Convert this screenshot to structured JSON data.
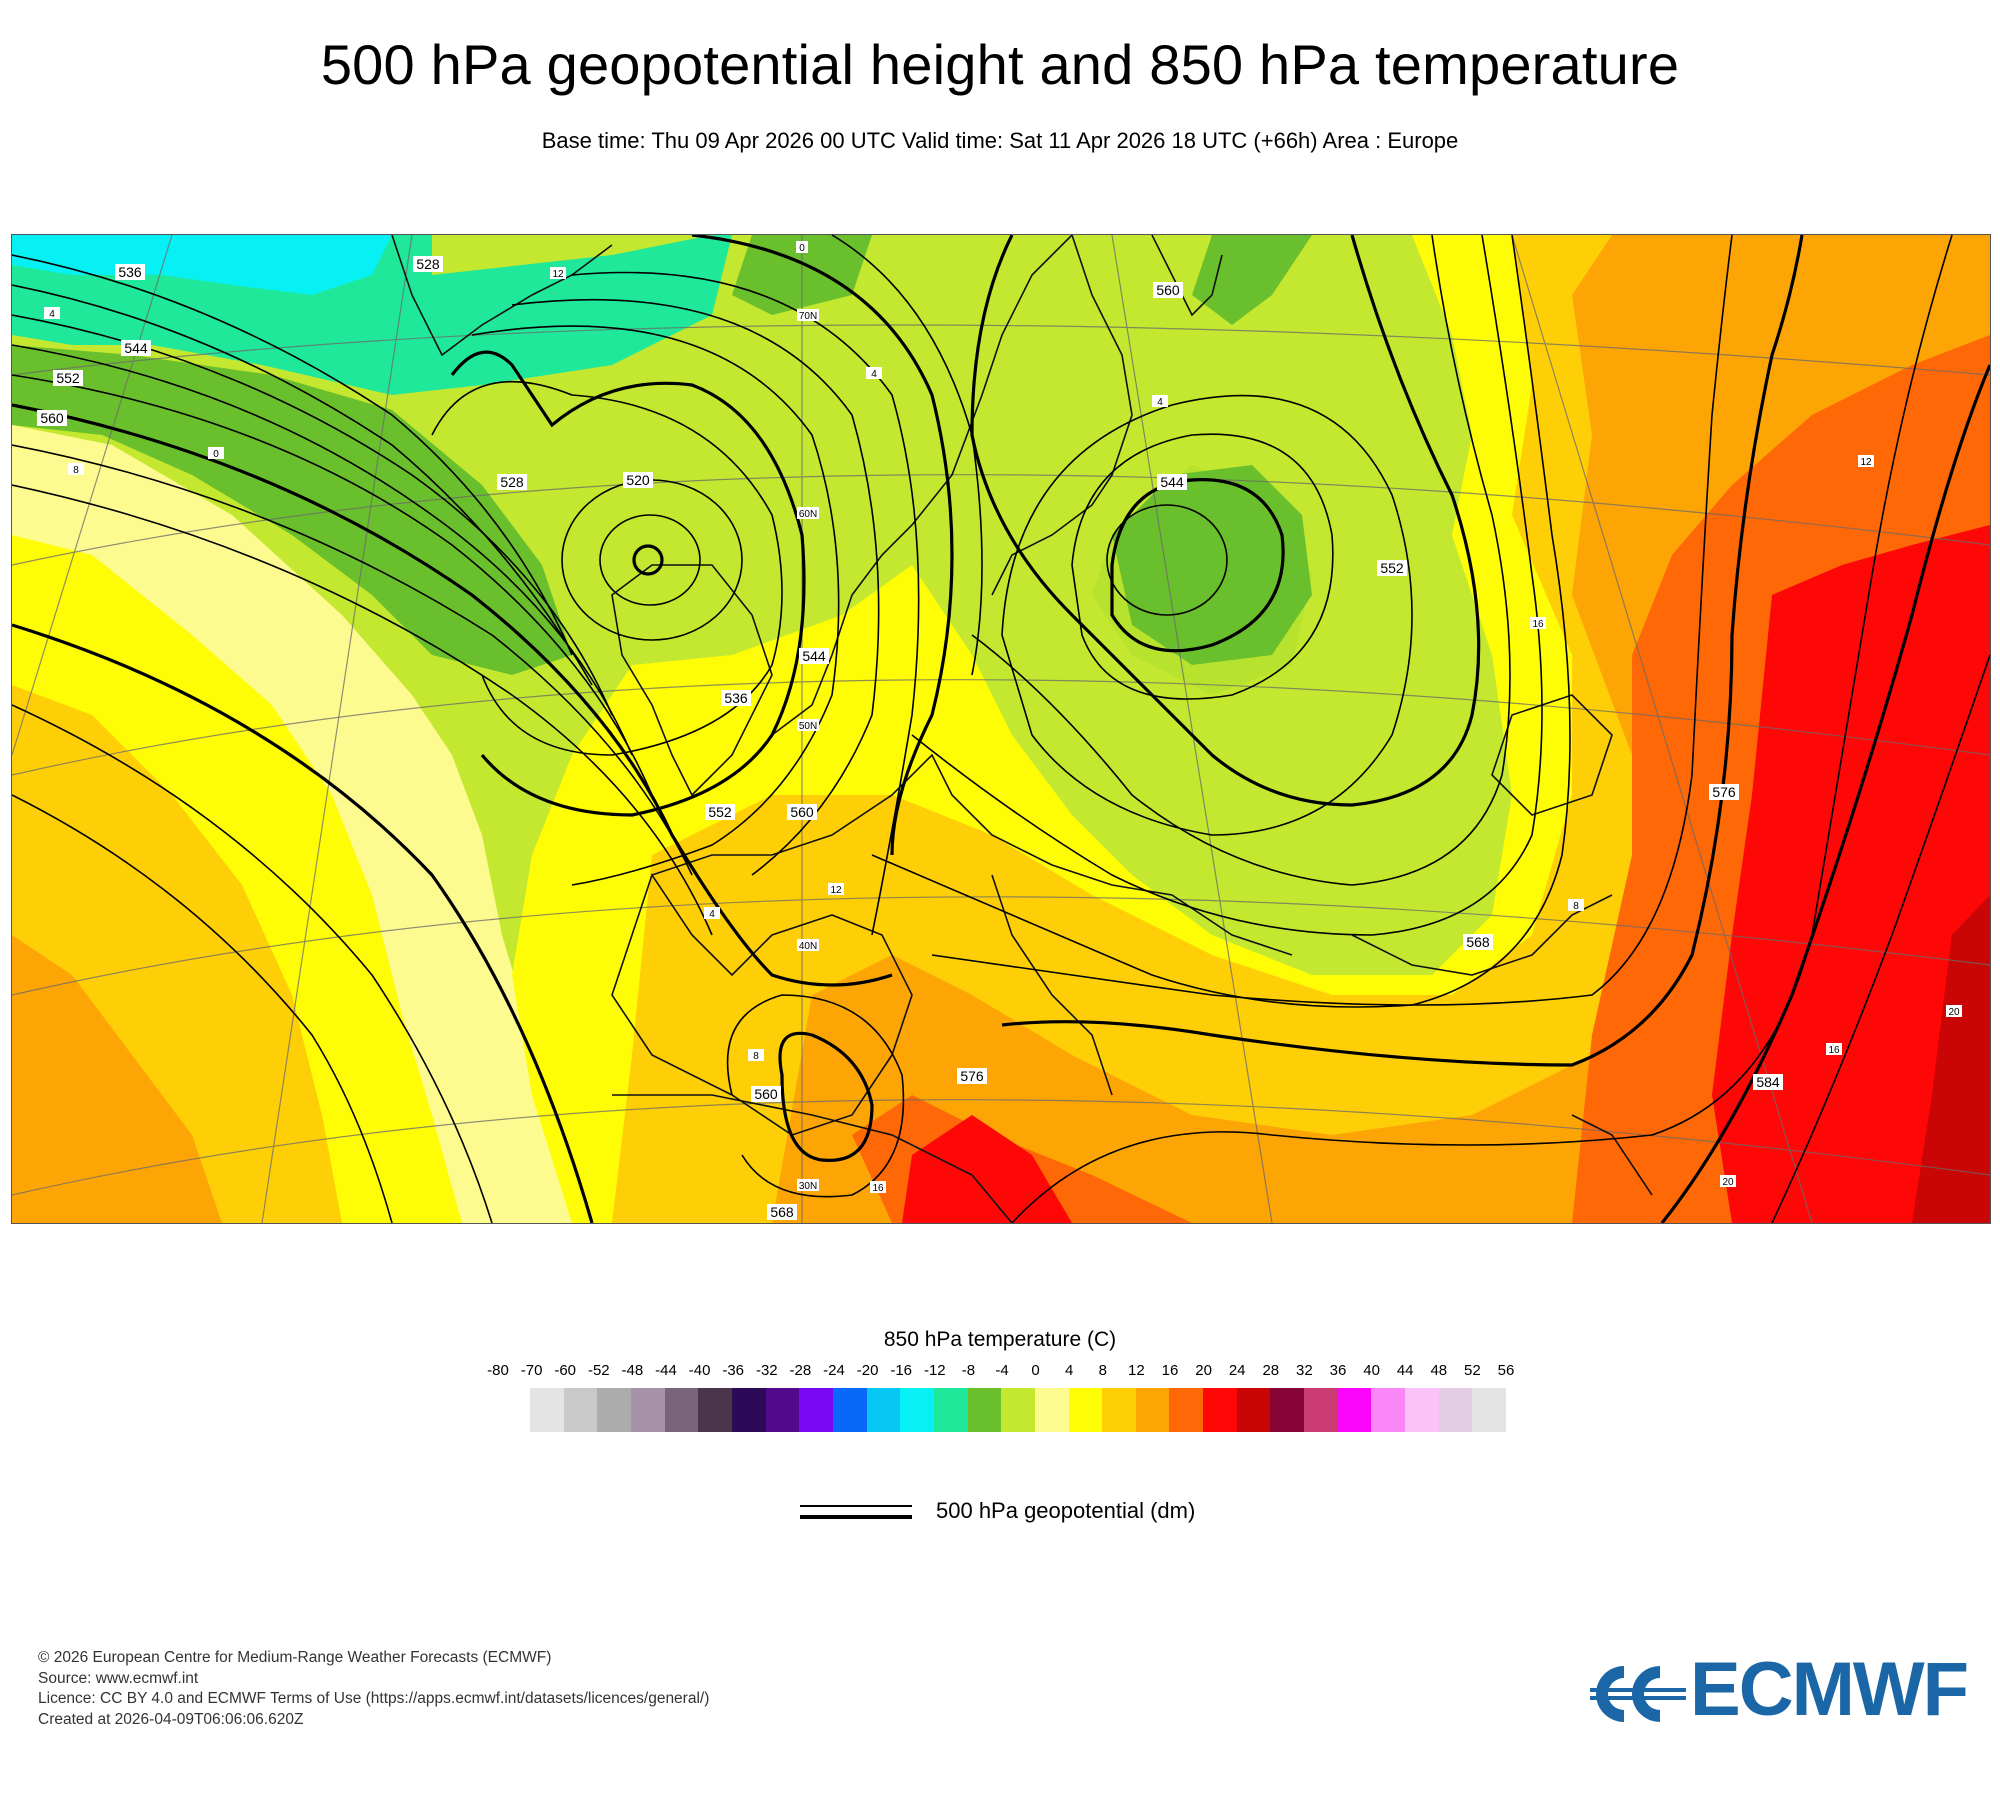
{
  "header": {
    "title": "500 hPa geopotential height and 850 hPa temperature",
    "subtitle": "Base time: Thu 09 Apr 2026 00 UTC Valid time: Sat 11 Apr 2026 18 UTC (+66h) Area : Europe"
  },
  "map": {
    "area": "Europe",
    "contour_labels": [
      "536",
      "528",
      "544",
      "552",
      "560",
      "528",
      "520",
      "544",
      "536",
      "560",
      "552",
      "544",
      "552",
      "560",
      "568",
      "576",
      "560",
      "568",
      "576",
      "584"
    ],
    "temp_labels": [
      "4",
      "12",
      "8",
      "0",
      "4",
      "4",
      "12",
      "16",
      "8",
      "12",
      "16",
      "20",
      "16",
      "20",
      "4",
      "8"
    ],
    "latitude_labels": [
      "70N",
      "60N",
      "50N",
      "40N",
      "30N"
    ],
    "longitude_labels": [
      "0"
    ]
  },
  "legend": {
    "title": "850 hPa temperature (C)",
    "levels": [
      "-80",
      "-70",
      "-60",
      "-52",
      "-48",
      "-44",
      "-40",
      "-36",
      "-32",
      "-28",
      "-24",
      "-20",
      "-16",
      "-12",
      "-8",
      "-4",
      "0",
      "4",
      "8",
      "12",
      "16",
      "20",
      "24",
      "28",
      "32",
      "36",
      "40",
      "44",
      "48",
      "52",
      "56"
    ],
    "colors": [
      "#e4e4e4",
      "#c9c9c9",
      "#acacac",
      "#a792a7",
      "#7a647a",
      "#4b354b",
      "#2d0a57",
      "#52098a",
      "#7a08f5",
      "#0868f7",
      "#07c7f5",
      "#07f1f5",
      "#20e89a",
      "#6abf2c",
      "#c4e82f",
      "#fdfb8f",
      "#fefd06",
      "#fecf06",
      "#fea506",
      "#fe6806",
      "#fe0707",
      "#c90505",
      "#870536",
      "#c93b71",
      "#fb06fb",
      "#fa86f8",
      "#fbc2f8",
      "#e3cbe3",
      "#e4e4e4"
    ],
    "line_label": "500 hPa geopotential (dm)"
  },
  "footer": {
    "copyright": "© 2026 European Centre for Medium-Range Weather Forecasts (ECMWF)",
    "source": "Source: www.ecmwf.int",
    "licence": "Licence: CC BY 4.0 and ECMWF Terms of Use (https://apps.ecmwf.int/datasets/licences/general/)",
    "created": "Created at 2026-04-09T06:06:06.620Z"
  },
  "logo": {
    "text": "ECMWF",
    "color": "#1a66a6"
  }
}
